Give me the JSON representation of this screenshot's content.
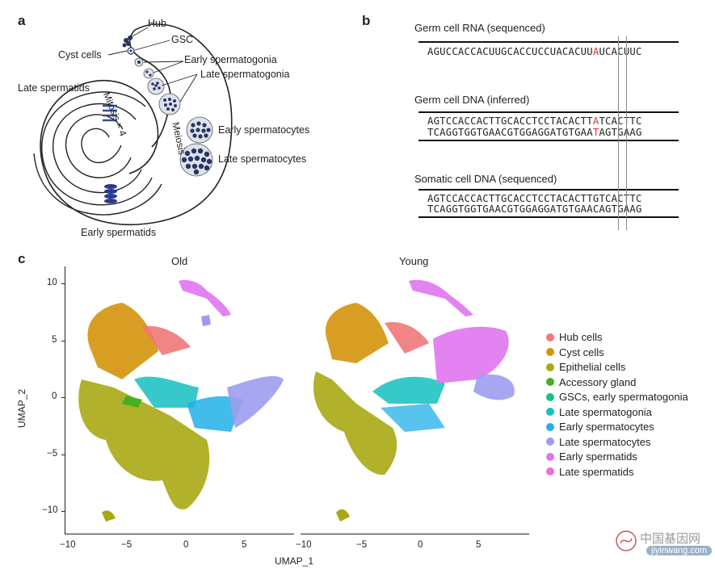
{
  "panel_a": {
    "label": "a",
    "labels": {
      "hub": "Hub",
      "gsc": "GSC",
      "cyst": "Cyst cells",
      "early_sg": "Early spermatogonia",
      "late_sg": "Late spermatogonia",
      "mitosis": "Mitosis × 4",
      "meiosis": "Meiosis",
      "early_sc": "Early spermatocytes",
      "late_sc": "Late spermatocytes",
      "late_st": "Late spermatids",
      "early_st": "Early spermatids"
    }
  },
  "panel_b": {
    "label": "b",
    "rna_title": "Germ cell RNA (sequenced)",
    "rna_pre": "AGUCCACCACUUGCACCUCCUACACUU",
    "rna_mid": "A",
    "rna_post": "UCACUUC",
    "dna_title": "Germ cell DNA (inferred)",
    "dna1_pre": "AGTCCACCACTTGCACCTCCTACACTT",
    "dna1_mid": "A",
    "dna1_post": "TCACTTC",
    "dna2_pre": "TCAGGTGGTGAACGTGGAGGATGTGAA",
    "dna2_mid": "T",
    "dna2_post": "AGTGAAG",
    "som_title": "Somatic cell DNA (sequenced)",
    "som1": "AGTCCACCACTTGCACCTCCTACACTTGTCACTTC",
    "som2": "TCAGGTGGTGAACGTGGAGGATGTGAACAGTGAAG"
  },
  "panel_c": {
    "label": "c",
    "old_title": "Old",
    "young_title": "Young",
    "xlabel": "UMAP_1",
    "ylabel": "UMAP_2",
    "yticks": [
      "10",
      "5",
      "0",
      "−5",
      "−10"
    ],
    "xticks": [
      "−10",
      "−5",
      "0",
      "5"
    ],
    "legend": [
      {
        "name": "Hub cells",
        "color": "#f07878"
      },
      {
        "name": "Cyst cells",
        "color": "#d4930c"
      },
      {
        "name": "Epithelial cells",
        "color": "#a8a814"
      },
      {
        "name": "Accessory gland",
        "color": "#44b020"
      },
      {
        "name": "GSCs, early spermatogonia",
        "color": "#18c08a"
      },
      {
        "name": "Late spermatogonia",
        "color": "#14c0c0"
      },
      {
        "name": "Early spermatocytes",
        "color": "#20b0e8"
      },
      {
        "name": "Late spermatocytes",
        "color": "#9c9cf0"
      },
      {
        "name": "Early spermatids",
        "color": "#e074f0"
      },
      {
        "name": "Late spermatids",
        "color": "#f070d0"
      }
    ]
  },
  "watermark": {
    "cn": "中国基因网",
    "url": "jiyinwang.com"
  }
}
